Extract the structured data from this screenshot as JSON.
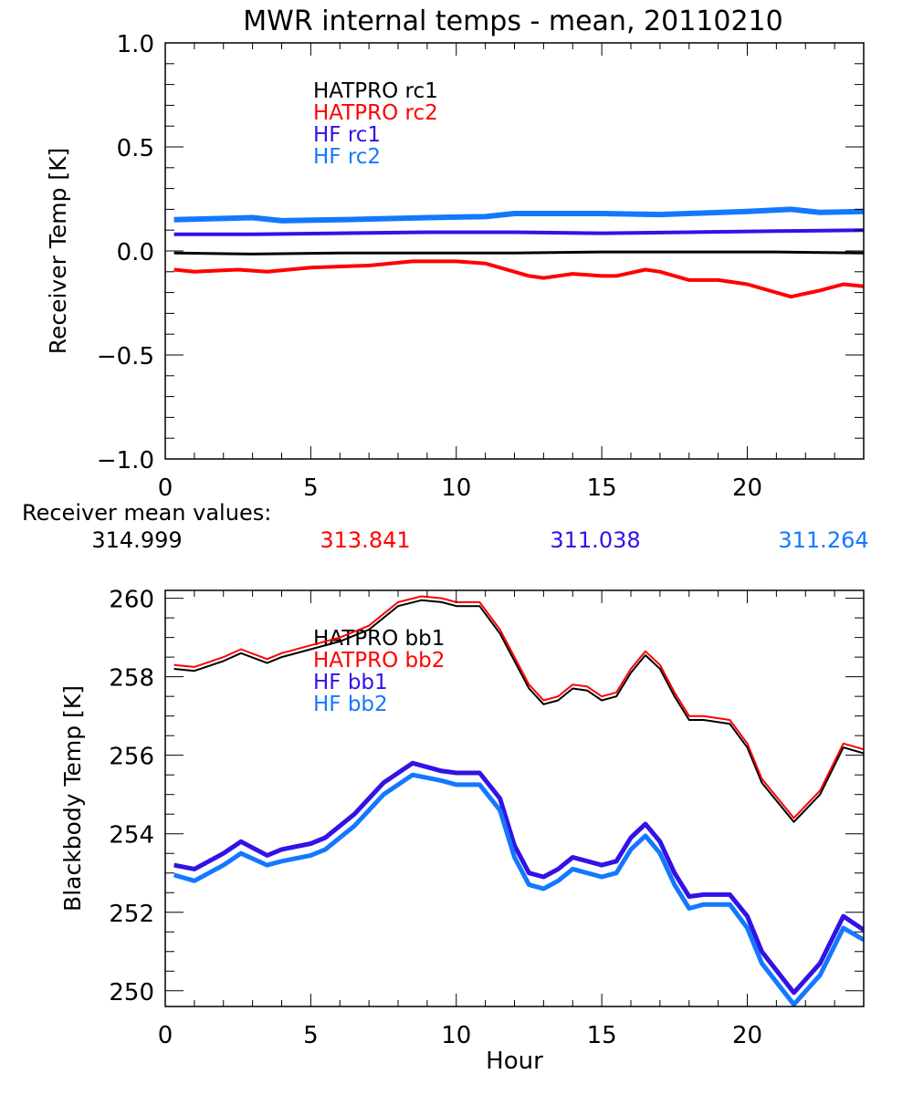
{
  "title": "MWR internal temps - mean, 20110210",
  "mean_values": {
    "label": "Receiver mean values:",
    "values": [
      "314.999",
      "313.841",
      "311.038",
      "311.264"
    ]
  },
  "colors": {
    "black": "#000000",
    "red": "#ff0000",
    "hf1": "#3212e6",
    "hf2": "#1478ff"
  },
  "chart_data": [
    {
      "type": "line",
      "title": "MWR internal temps - mean, 20110210",
      "xlabel": "",
      "ylabel": "Receiver Temp [K]",
      "xlim": [
        0,
        24
      ],
      "ylim": [
        -1.0,
        1.0
      ],
      "xticks": [
        "0",
        "5",
        "10",
        "15",
        "20"
      ],
      "yticks": [
        "-1.0",
        "-0.5",
        "0.0",
        "0.5",
        "1.0"
      ],
      "legend_placement": "top-left",
      "series": [
        {
          "name": "HATPRO rc1",
          "color": "#000000",
          "x": [
            0.3,
            3,
            6,
            9,
            12,
            15,
            18,
            21,
            24
          ],
          "y": [
            -0.01,
            -0.015,
            -0.01,
            -0.01,
            -0.01,
            -0.005,
            -0.005,
            -0.005,
            -0.01
          ]
        },
        {
          "name": "HATPRO rc2",
          "color": "#ff0000",
          "x": [
            0.3,
            1,
            2.5,
            3.5,
            5,
            7,
            8.5,
            10,
            11,
            12.5,
            13,
            14,
            15,
            15.5,
            16.5,
            17,
            18,
            19,
            20,
            21.5,
            22.5,
            23.3,
            24
          ],
          "y": [
            -0.09,
            -0.1,
            -0.09,
            -0.1,
            -0.08,
            -0.07,
            -0.05,
            -0.05,
            -0.06,
            -0.12,
            -0.13,
            -0.11,
            -0.12,
            -0.12,
            -0.09,
            -0.1,
            -0.14,
            -0.14,
            -0.16,
            -0.22,
            -0.19,
            -0.16,
            -0.17
          ]
        },
        {
          "name": "HF rc1",
          "color": "#3212e6",
          "x": [
            0.3,
            3,
            6,
            9,
            12,
            15,
            18,
            21,
            24
          ],
          "y": [
            0.08,
            0.08,
            0.085,
            0.09,
            0.09,
            0.085,
            0.09,
            0.095,
            0.1
          ]
        },
        {
          "name": "HF rc2",
          "color": "#1478ff",
          "x": [
            0.3,
            3,
            4,
            6,
            9,
            11,
            12,
            15,
            17,
            20,
            21.5,
            22.5,
            24
          ],
          "y": [
            0.15,
            0.16,
            0.145,
            0.15,
            0.16,
            0.165,
            0.18,
            0.18,
            0.175,
            0.19,
            0.2,
            0.185,
            0.19
          ]
        }
      ]
    },
    {
      "type": "line",
      "title": "",
      "xlabel": "Hour",
      "ylabel": "Blackbody Temp [K]",
      "xlim": [
        0,
        24
      ],
      "ylim": [
        249.6,
        260.2
      ],
      "xticks": [
        "0",
        "5",
        "10",
        "15",
        "20"
      ],
      "yticks": [
        "250",
        "252",
        "254",
        "256",
        "258",
        "260"
      ],
      "legend_placement": "top-left",
      "series": [
        {
          "name": "HATPRO bb1",
          "color": "#000000",
          "x": [
            0.3,
            1,
            2,
            2.6,
            3.5,
            4,
            5,
            6,
            7,
            8,
            8.8,
            9.5,
            10,
            10.8,
            11.5,
            12.5,
            13,
            13.5,
            14,
            14.5,
            15,
            15.5,
            16,
            16.5,
            17,
            17.5,
            18,
            18.5,
            19.4,
            20,
            20.5,
            21.6,
            22.5,
            23.3,
            24
          ],
          "y": [
            258.2,
            258.15,
            258.4,
            258.6,
            258.35,
            258.5,
            258.7,
            258.9,
            259.2,
            259.8,
            259.95,
            259.9,
            259.8,
            259.8,
            259.1,
            257.7,
            257.3,
            257.4,
            257.7,
            257.65,
            257.4,
            257.5,
            258.1,
            258.55,
            258.2,
            257.5,
            256.9,
            256.9,
            256.8,
            256.2,
            255.3,
            254.3,
            255.0,
            256.2,
            256.05
          ]
        },
        {
          "name": "HATPRO bb2",
          "color": "#ff0000",
          "x": [
            0.3,
            1,
            2,
            2.6,
            3.5,
            4,
            5,
            6,
            7,
            8,
            8.8,
            9.5,
            10,
            10.8,
            11.5,
            12.5,
            13,
            13.5,
            14,
            14.5,
            15,
            15.5,
            16,
            16.5,
            17,
            17.5,
            18,
            18.5,
            19.4,
            20,
            20.5,
            21.6,
            22.5,
            23.3,
            24
          ],
          "y": [
            258.3,
            258.25,
            258.5,
            258.7,
            258.45,
            258.6,
            258.8,
            259.0,
            259.3,
            259.9,
            260.05,
            260.0,
            259.9,
            259.9,
            259.2,
            257.8,
            257.4,
            257.5,
            257.8,
            257.75,
            257.5,
            257.6,
            258.2,
            258.65,
            258.3,
            257.6,
            257.0,
            257.0,
            256.9,
            256.3,
            255.4,
            254.4,
            255.1,
            256.3,
            256.15
          ]
        },
        {
          "name": "HF bb1",
          "color": "#3212e6",
          "x": [
            0.3,
            1,
            2,
            2.6,
            3.5,
            4,
            5,
            5.5,
            6.5,
            7.5,
            8.5,
            9.5,
            10,
            10.8,
            11.5,
            12,
            12.5,
            13,
            13.5,
            14,
            15,
            15.5,
            16,
            16.5,
            17,
            17.5,
            18,
            18.5,
            19.4,
            20,
            20.5,
            21.6,
            22.5,
            23.3,
            24
          ],
          "y": [
            253.2,
            253.1,
            253.5,
            253.8,
            253.45,
            253.6,
            253.75,
            253.9,
            254.5,
            255.3,
            255.8,
            255.6,
            255.55,
            255.55,
            254.9,
            253.7,
            253.0,
            252.9,
            253.1,
            253.4,
            253.2,
            253.3,
            253.9,
            254.25,
            253.8,
            253.0,
            252.4,
            252.45,
            252.45,
            251.9,
            251.0,
            249.95,
            250.7,
            251.9,
            251.55
          ]
        },
        {
          "name": "HF bb2",
          "color": "#1478ff",
          "x": [
            0.3,
            1,
            2,
            2.6,
            3.5,
            4,
            5,
            5.5,
            6.5,
            7.5,
            8.5,
            9.5,
            10,
            10.8,
            11.5,
            12,
            12.5,
            13,
            13.5,
            14,
            15,
            15.5,
            16,
            16.5,
            17,
            17.5,
            18,
            18.5,
            19.4,
            20,
            20.5,
            21.6,
            22.5,
            23.3,
            24
          ],
          "y": [
            252.95,
            252.8,
            253.2,
            253.5,
            253.2,
            253.3,
            253.45,
            253.6,
            254.2,
            255.0,
            255.5,
            255.35,
            255.25,
            255.25,
            254.6,
            253.4,
            252.7,
            252.6,
            252.8,
            253.1,
            252.9,
            253.0,
            253.6,
            253.95,
            253.5,
            252.7,
            252.1,
            252.2,
            252.2,
            251.6,
            250.7,
            249.65,
            250.4,
            251.6,
            251.3
          ]
        }
      ]
    }
  ]
}
